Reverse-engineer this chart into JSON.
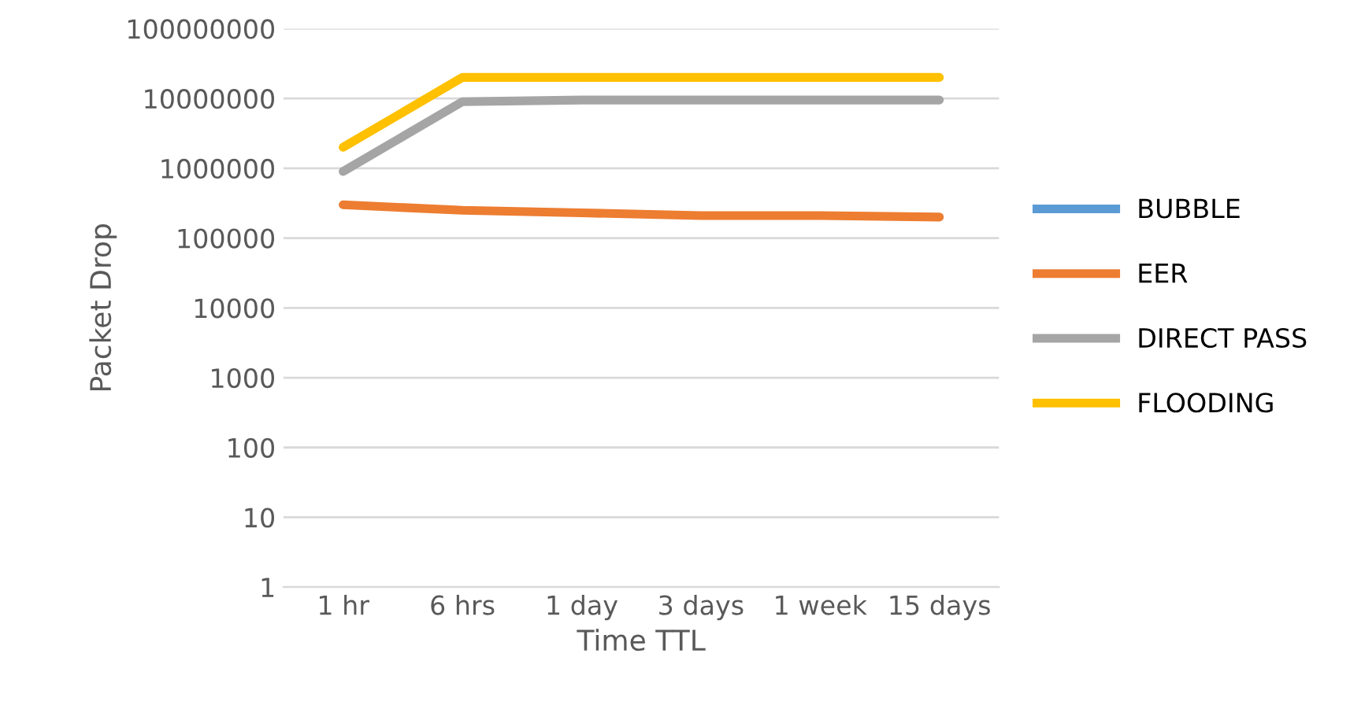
{
  "chart_data": {
    "type": "line",
    "xlabel": "Time TTL",
    "ylabel": "Packet Drop",
    "categories": [
      "1 hr",
      "6 hrs",
      "1 day",
      "3 days",
      "1 week",
      "15 days"
    ],
    "log": "y",
    "ylim": [
      1,
      100000000
    ],
    "yticks": [
      1,
      10,
      100,
      1000,
      10000,
      100000,
      1000000,
      10000000,
      100000000
    ],
    "grid": "y",
    "legend": "right",
    "marker": "none",
    "line_style": "solid",
    "series": [
      {
        "name": "BUBBLE",
        "color": "#5b9bd5",
        "values": [
          null,
          null,
          null,
          null,
          null,
          null
        ]
      },
      {
        "name": "EER",
        "color": "#ed7d31",
        "values": [
          300000,
          250000,
          230000,
          210000,
          210000,
          200000
        ]
      },
      {
        "name": "DIRECT PASS",
        "color": "#a5a5a5",
        "values": [
          900000,
          9000000,
          9500000,
          9500000,
          9500000,
          9500000
        ]
      },
      {
        "name": "FLOODING",
        "color": "#ffc000",
        "values": [
          2000000,
          20000000,
          20000000,
          20000000,
          20000000,
          20000000
        ]
      }
    ]
  }
}
